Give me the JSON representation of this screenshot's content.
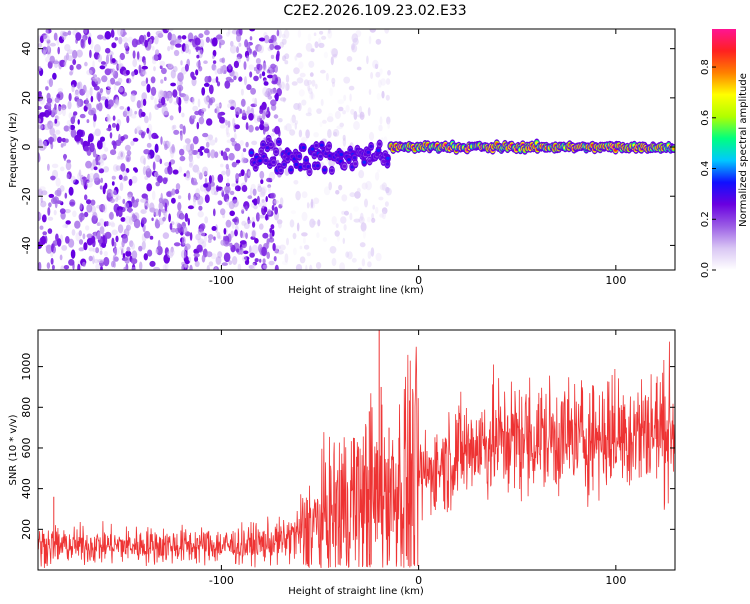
{
  "title": "C2E2.2026.109.23.02.E33",
  "chart_data": [
    {
      "type": "heatmap",
      "xlabel": "Height of straight line (km)",
      "ylabel": "Frequency (Hz)",
      "xlim": [
        -193,
        130
      ],
      "ylim": [
        -50,
        48
      ],
      "xticks": [
        -100,
        0,
        100
      ],
      "xtick_labels": [
        "-100",
        "0",
        "100"
      ],
      "yticks": [
        -40,
        -20,
        0,
        20,
        40
      ],
      "ytick_labels": [
        "-40",
        "-20",
        "0",
        "20",
        "40"
      ],
      "colorbar": {
        "label": "Normalized spectral amplitude",
        "range": [
          0,
          0.95
        ],
        "ticks": [
          0,
          0.2,
          0.4,
          0.6,
          0.8
        ],
        "tick_labels": [
          "0.0",
          "0.2",
          "0.4",
          "0.6",
          "0.8"
        ],
        "colormap": [
          "#ffffff",
          "#d9c6f4",
          "#9b5de5",
          "#6a00e0",
          "#1010ff",
          "#00c8ff",
          "#00ff80",
          "#b0ff00",
          "#ffff00",
          "#ff8000",
          "#ff2020",
          "#ff1493"
        ]
      },
      "regions": [
        {
          "description": "scattered purple noise",
          "x_range": [
            -193,
            -70
          ],
          "freq_range": [
            -50,
            48
          ],
          "amplitude": 0.2
        },
        {
          "description": "sparse faint speckle",
          "x_range": [
            -70,
            -15
          ],
          "freq_range": [
            -50,
            48
          ],
          "amplitude": 0.08
        },
        {
          "description": "narrowband signal",
          "x_range": [
            -85,
            -15
          ],
          "center_freq": -4,
          "amplitude": 0.35
        },
        {
          "description": "strong narrowband signal",
          "x_range": [
            -15,
            130
          ],
          "center_freq": 0,
          "amplitude": 0.9
        }
      ]
    },
    {
      "type": "line",
      "xlabel": "Height of straight line (km)",
      "ylabel": "SNR (10 * v/v)",
      "xlim": [
        -193,
        130
      ],
      "ylim": [
        0,
        1180
      ],
      "xticks": [
        -100,
        0,
        100
      ],
      "xtick_labels": [
        "-100",
        "0",
        "100"
      ],
      "yticks": [
        200,
        400,
        600,
        800,
        1000
      ],
      "ytick_labels": [
        "200",
        "400",
        "600",
        "800",
        "1000"
      ],
      "color": "#ee3333",
      "trend_x": [
        -193,
        -90,
        -70,
        -50,
        -40,
        -30,
        -20,
        -10,
        0,
        10,
        20,
        40,
        60,
        80,
        100,
        130
      ],
      "trend_y": [
        120,
        120,
        140,
        220,
        290,
        330,
        360,
        400,
        450,
        510,
        580,
        640,
        650,
        650,
        670,
        700
      ],
      "spike_x": [
        -185,
        -33,
        -25,
        -20,
        -19,
        -15,
        -10
      ],
      "spike_y": [
        360,
        650,
        780,
        1180,
        900,
        700,
        650
      ]
    }
  ]
}
